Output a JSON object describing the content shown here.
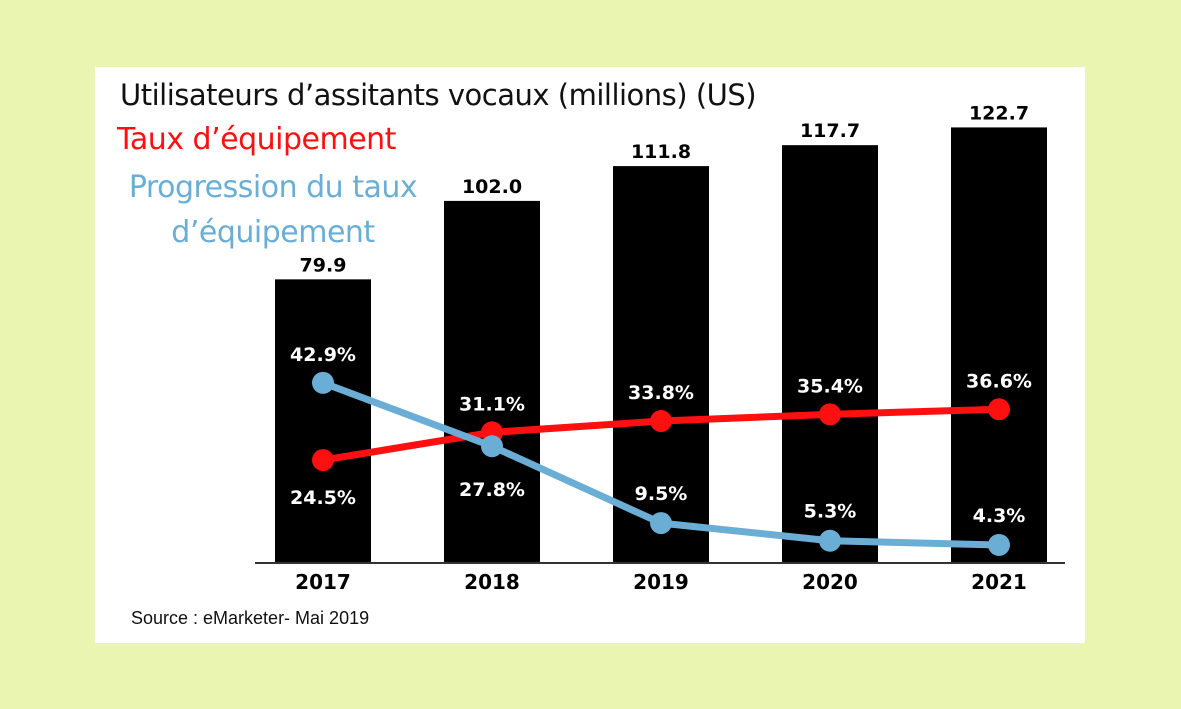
{
  "chart_data": {
    "type": "bar",
    "title": "Utilisateurs d’assitants vocaux (millions) (US)",
    "categories": [
      "2017",
      "2018",
      "2019",
      "2020",
      "2021"
    ],
    "bar_series": {
      "values": [
        79.9,
        102.0,
        111.8,
        117.7,
        122.7
      ],
      "labels": [
        "79.9",
        "102.0",
        "111.8",
        "117.7",
        "122.7"
      ],
      "color": "#000000"
    },
    "line_series": [
      {
        "name": "Taux d’équipement",
        "values": [
          24.5,
          31.1,
          33.8,
          35.4,
          36.6
        ],
        "labels": [
          "24.5%",
          "31.1%",
          "33.8%",
          "35.4%",
          "36.6%"
        ],
        "color": "#ff1010"
      },
      {
        "name": "Progression du taux d’équipement",
        "values": [
          42.9,
          27.8,
          9.5,
          5.3,
          4.3
        ],
        "labels": [
          "42.9%",
          "27.8%",
          "9.5%",
          "5.3%",
          "4.3%"
        ],
        "color": "#6aaed6"
      }
    ],
    "legend_position": "top-left",
    "grid": false,
    "ylim": [
      0,
      130
    ]
  },
  "source": "Source : eMarketer- Mai 2019"
}
